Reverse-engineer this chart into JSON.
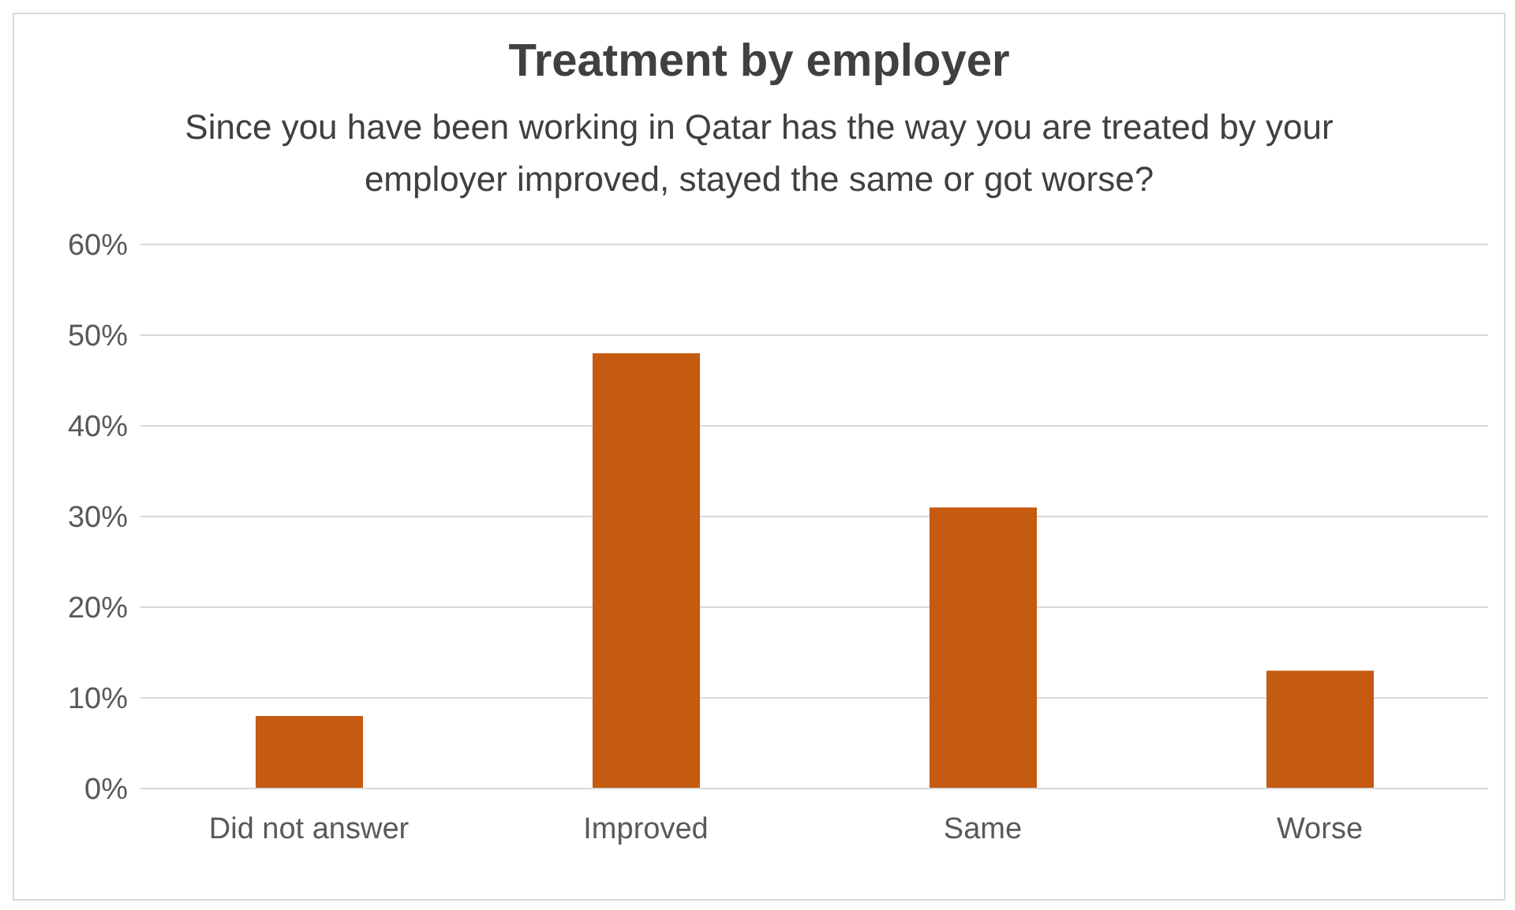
{
  "chart_data": {
    "type": "bar",
    "title": "Treatment by employer",
    "subtitle": "Since you have been working in Qatar has the way you are treated by your employer improved, stayed the same or got worse?",
    "categories": [
      "Did not answer",
      "Improved",
      "Same",
      "Worse"
    ],
    "values": [
      8,
      48,
      31,
      13
    ],
    "color": "#c55a11",
    "ylim": [
      0,
      60
    ],
    "yticks": [
      {
        "value": 0,
        "label": "0%"
      },
      {
        "value": 10,
        "label": "10%"
      },
      {
        "value": 20,
        "label": "20%"
      },
      {
        "value": 30,
        "label": "30%"
      },
      {
        "value": 40,
        "label": "40%"
      },
      {
        "value": 50,
        "label": "50%"
      },
      {
        "value": 60,
        "label": "60%"
      }
    ],
    "grid": "y"
  }
}
